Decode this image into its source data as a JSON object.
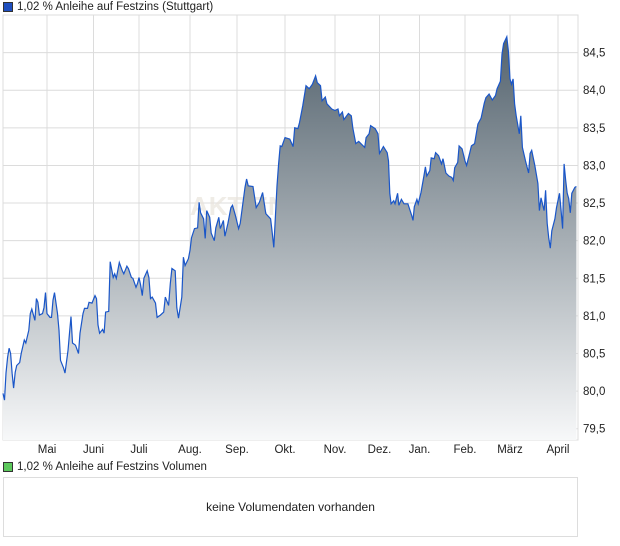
{
  "legend_price": {
    "label": "1,02 % Anleihe auf Festzins (Stuttgart)",
    "color": "#1f4fbf"
  },
  "legend_volume": {
    "label": "1,02 % Anleihe auf Festzins Volumen",
    "color": "#5cc85c"
  },
  "volume_message": "keine Volumendaten vorhanden",
  "watermark": "AKTIEN",
  "colors": {
    "line": "#1a56c8",
    "fill_top": "#54636e",
    "fill_bottom": "#f7f8f9",
    "grid": "#dcdcdc"
  },
  "chart_data": {
    "type": "area",
    "title": "",
    "xlabel": "",
    "ylabel": "",
    "ylim": [
      79.35,
      85.0
    ],
    "grid": true,
    "y_ticks": [
      "79,5",
      "80,0",
      "80,5",
      "81,0",
      "81,5",
      "82,0",
      "82,5",
      "83,0",
      "83,5",
      "84,0",
      "84,5"
    ],
    "y_tick_values": [
      79.5,
      80,
      80.5,
      81,
      81.5,
      82,
      82.5,
      83,
      83.5,
      84,
      84.5
    ],
    "x_ticks": [
      "Mai",
      "Juni",
      "Juli",
      "Aug.",
      "Sep.",
      "Okt.",
      "Nov.",
      "Dez.",
      "Jan.",
      "Feb.",
      "März",
      "April"
    ],
    "series": [
      {
        "x": [
          "04-02",
          "04-03",
          "04-04",
          "04-05",
          "04-06",
          "04-07",
          "04-08",
          "04-09",
          "04-10",
          "04-11",
          "04-13",
          "04-14",
          "04-16",
          "04-17",
          "04-19",
          "04-20",
          "04-21",
          "04-23",
          "04-24",
          "04-25",
          "04-26",
          "04-28",
          "04-29",
          "04-30",
          "05-01",
          "05-03",
          "05-04",
          "05-05",
          "05-06",
          "05-08",
          "05-09",
          "05-10",
          "05-12",
          "05-13",
          "05-15",
          "05-16",
          "05-17",
          "05-18",
          "05-20",
          "05-22",
          "05-23",
          "05-25",
          "05-26",
          "05-28",
          "05-29",
          "05-31",
          "06-02",
          "06-03",
          "06-04",
          "06-05",
          "06-07",
          "06-08",
          "06-09",
          "06-11",
          "06-12",
          "06-14",
          "06-15",
          "06-16",
          "06-18",
          "06-20",
          "06-21",
          "06-23",
          "06-24",
          "06-26",
          "06-27",
          "06-29",
          "06-30",
          "07-01",
          "07-02",
          "07-03",
          "07-04",
          "07-06",
          "07-07",
          "07-08",
          "07-09",
          "07-11",
          "07-12",
          "07-14",
          "07-16",
          "07-17",
          "07-19",
          "07-20",
          "07-21",
          "07-23",
          "07-24",
          "07-25",
          "07-27",
          "07-28",
          "07-29",
          "07-31",
          "08-01",
          "08-02",
          "08-04",
          "08-06",
          "08-07",
          "08-08",
          "08-10",
          "08-11",
          "08-12",
          "08-14",
          "08-15",
          "08-17",
          "08-18",
          "08-20",
          "08-21",
          "08-23",
          "08-24",
          "08-26",
          "08-28",
          "08-29",
          "08-31",
          "09-02",
          "09-03",
          "09-06",
          "09-07",
          "09-08",
          "09-11",
          "09-13",
          "09-15",
          "09-17",
          "09-19",
          "09-22",
          "09-23",
          "09-24",
          "09-26",
          "09-27",
          "09-28",
          "09-29",
          "10-01",
          "10-04",
          "10-06",
          "10-07",
          "10-09",
          "10-10",
          "10-12",
          "10-14",
          "10-16",
          "10-18",
          "10-20",
          "10-21",
          "10-23",
          "10-24",
          "10-26",
          "10-27",
          "10-30",
          "11-01",
          "11-03",
          "11-04",
          "11-06",
          "11-07",
          "11-10",
          "11-12",
          "11-13",
          "11-15",
          "11-17",
          "11-21",
          "11-22",
          "11-24",
          "11-25",
          "11-28",
          "11-30",
          "12-01",
          "12-04",
          "12-07",
          "12-08",
          "12-09",
          "12-10",
          "12-12",
          "12-13",
          "12-15",
          "12-16",
          "12-18",
          "12-20",
          "12-23",
          "12-26",
          "12-27",
          "12-28",
          "12-30",
          "12-31",
          "01-02",
          "01-04",
          "01-05",
          "01-06",
          "01-08",
          "01-09",
          "01-11",
          "01-12",
          "01-14",
          "01-16",
          "01-17",
          "01-19",
          "01-21",
          "01-23",
          "01-24",
          "01-25",
          "01-27",
          "01-28",
          "01-30",
          "02-01",
          "02-02",
          "02-04",
          "02-05",
          "02-07",
          "02-09",
          "02-11",
          "02-13",
          "02-14",
          "02-16",
          "02-18",
          "02-20",
          "02-21",
          "02-23",
          "02-24",
          "02-25",
          "02-27",
          "02-28",
          "03-01",
          "03-02",
          "03-03",
          "03-04",
          "03-05",
          "03-07",
          "03-08",
          "03-09",
          "03-11",
          "03-13",
          "03-14",
          "03-15",
          "03-17",
          "03-19",
          "03-20",
          "03-21",
          "03-23",
          "03-24",
          "03-25",
          "03-26",
          "03-27",
          "03-28",
          "03-30",
          "03-31",
          "04-02",
          "04-03",
          "04-04",
          "04-05",
          "04-06",
          "04-07",
          "04-08",
          "04-09",
          "04-10",
          "04-12",
          "04-13"
        ],
        "y": [
          79.97,
          79.88,
          80.24,
          80.45,
          80.57,
          80.5,
          80.24,
          80.04,
          80.25,
          80.34,
          80.38,
          80.5,
          80.68,
          80.64,
          80.81,
          81.03,
          81.09,
          80.94,
          81.23,
          81.18,
          81.01,
          81.03,
          81.11,
          81.31,
          81.03,
          80.98,
          80.98,
          81.21,
          81.31,
          81.03,
          80.81,
          80.41,
          80.31,
          80.24,
          80.54,
          80.77,
          80.99,
          80.64,
          80.61,
          80.5,
          80.77,
          81.03,
          81.1,
          81.1,
          81.18,
          81.17,
          81.27,
          81.23,
          80.88,
          80.77,
          80.82,
          80.77,
          81.05,
          81.06,
          81.72,
          81.51,
          81.56,
          81.5,
          81.71,
          81.6,
          81.56,
          81.66,
          81.63,
          81.51,
          81.5,
          81.38,
          81.43,
          81.51,
          81.41,
          81.27,
          81.5,
          81.6,
          81.51,
          81.23,
          81.25,
          81.17,
          80.98,
          81.01,
          81.05,
          81.25,
          81.14,
          81.43,
          81.63,
          81.6,
          81.11,
          80.97,
          81.25,
          81.78,
          81.67,
          81.76,
          81.87,
          82.04,
          82.16,
          82.17,
          82.51,
          82.37,
          82.29,
          82.03,
          82.4,
          82.31,
          82.1,
          82.0,
          82.17,
          82.31,
          82.16,
          82.27,
          82.06,
          82.23,
          82.44,
          82.47,
          82.33,
          82.16,
          82.23,
          82.71,
          82.82,
          82.73,
          82.72,
          82.44,
          82.51,
          82.64,
          82.36,
          82.29,
          82.11,
          81.91,
          82.73,
          83.02,
          83.26,
          83.25,
          83.37,
          83.35,
          83.25,
          83.5,
          83.49,
          83.57,
          83.79,
          84.06,
          84.02,
          84.08,
          84.19,
          84.1,
          84.06,
          83.86,
          83.91,
          83.82,
          83.75,
          83.73,
          83.75,
          83.66,
          83.71,
          83.61,
          83.69,
          83.66,
          83.5,
          83.29,
          83.32,
          83.24,
          83.37,
          83.42,
          83.53,
          83.49,
          83.42,
          83.16,
          83.25,
          83.17,
          83.06,
          82.63,
          82.49,
          82.53,
          82.49,
          82.63,
          82.47,
          82.55,
          82.49,
          82.49,
          82.33,
          82.27,
          82.45,
          82.55,
          82.49,
          82.64,
          82.86,
          82.98,
          82.86,
          82.93,
          83.1,
          83.09,
          83.17,
          83.13,
          83.02,
          83.09,
          82.9,
          82.86,
          82.84,
          82.8,
          82.97,
          83.04,
          83.26,
          83.22,
          83.06,
          83.0,
          83.17,
          83.26,
          83.29,
          83.55,
          83.63,
          83.83,
          83.9,
          83.95,
          83.87,
          83.93,
          84.02,
          84.12,
          84.48,
          84.62,
          84.71,
          84.52,
          84.15,
          84.08,
          84.15,
          83.82,
          83.66,
          83.42,
          83.66,
          83.24,
          83.06,
          82.9,
          83.16,
          83.2,
          83.0,
          82.76,
          82.4,
          82.57,
          82.4,
          82.67,
          82.23,
          82.04,
          81.9,
          82.13,
          82.29,
          82.44,
          82.63,
          82.4,
          82.16,
          83.02,
          82.8,
          82.63,
          82.56,
          82.37,
          82.63,
          82.71,
          82.72
        ]
      }
    ]
  }
}
